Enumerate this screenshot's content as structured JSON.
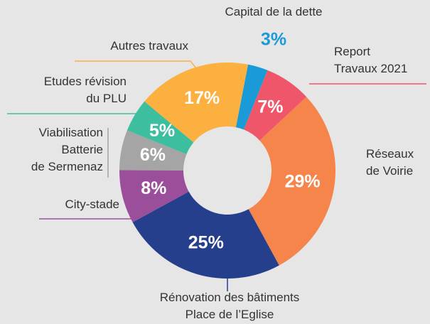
{
  "chart_data": {
    "type": "pie",
    "categories": [
      "Capital de la dette",
      "Report\nTravaux 2021",
      "Réseaux\nde Voirie",
      "Rénovation des bâtiments\nPlace de l’Eglise",
      "City-stade",
      "Viabilisation\nBatterie\nde Sermenaz",
      "Etudes révision\ndu PLU",
      "Autres travaux"
    ],
    "values": [
      3,
      7,
      29,
      25,
      8,
      6,
      5,
      17
    ],
    "value_labels": [
      "3%",
      "7%",
      "29%",
      "25%",
      "8%",
      "6%",
      "5%",
      "17%"
    ],
    "colors": [
      "#1a9ad6",
      "#f0566a",
      "#f5854a",
      "#263f8c",
      "#9b4f9b",
      "#a5a5a5",
      "#3dbf9f",
      "#fbb040"
    ],
    "donut": true
  }
}
